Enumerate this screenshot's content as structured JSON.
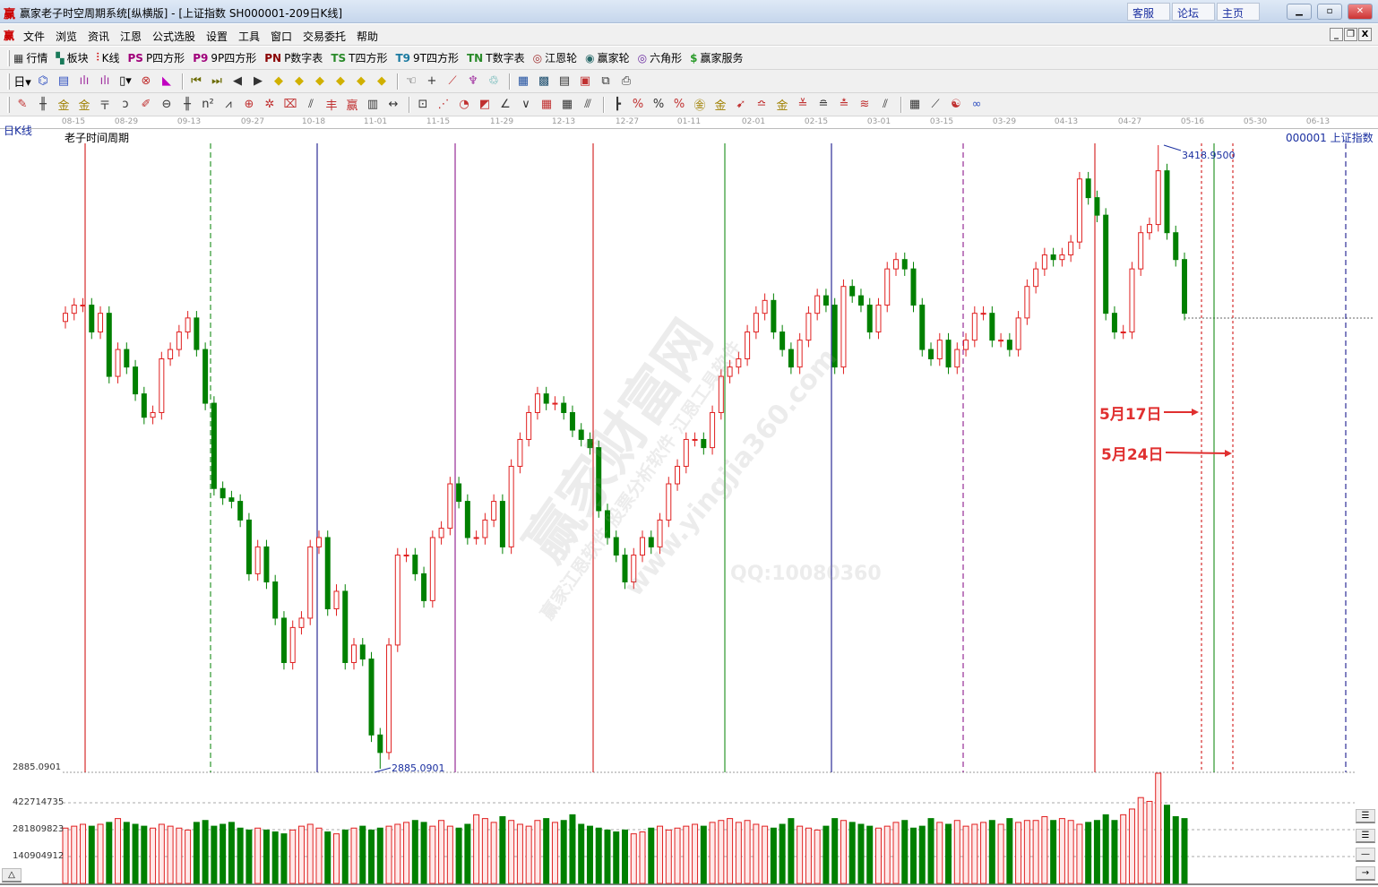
{
  "window": {
    "logo": "赢",
    "title": "赢家老子时空周期系统[纵横版] - [上证指数  SH000001-209日K线]",
    "links": [
      "客服",
      "论坛",
      "主页"
    ],
    "controls": {
      "minimize": "▁",
      "maximize": "▫",
      "close": "✕"
    }
  },
  "menu": {
    "logo": "赢",
    "items": [
      "文件",
      "浏览",
      "资讯",
      "江恩",
      "公式选股",
      "设置",
      "工具",
      "窗口",
      "交易委托",
      "帮助"
    ],
    "mdi": {
      "minimize": "_",
      "restore": "❐",
      "close": "X"
    }
  },
  "toolbar1": [
    {
      "name": "quotes-icon",
      "glyph": "▦",
      "color": "#333",
      "label": "行情"
    },
    {
      "name": "sector-icon",
      "glyph": "▚",
      "color": "#1a7a5a",
      "label": "板块"
    },
    {
      "name": "kline-icon",
      "glyph": "⫶",
      "color": "#c00",
      "label": "K线"
    },
    {
      "name": "ps-icon",
      "glyph": "PS",
      "color": "#a0007a",
      "label": "P四方形"
    },
    {
      "name": "p9-icon",
      "glyph": "P9",
      "color": "#a0007a",
      "label": "9P四方形"
    },
    {
      "name": "pn-icon",
      "glyph": "PN",
      "color": "#8a0000",
      "label": "P数字表"
    },
    {
      "name": "ts-icon",
      "glyph": "TS",
      "color": "#2a8a2a",
      "label": "T四方形"
    },
    {
      "name": "t9-icon",
      "glyph": "T9",
      "color": "#1a7aa0",
      "label": "9T四方形"
    },
    {
      "name": "tn-icon",
      "glyph": "TN",
      "color": "#2a8a2a",
      "label": "T数字表"
    },
    {
      "name": "gann-wheel-icon",
      "glyph": "◎",
      "color": "#a03030",
      "label": "江恩轮"
    },
    {
      "name": "yingjia-wheel-icon",
      "glyph": "◉",
      "color": "#2a6a6a",
      "label": "赢家轮"
    },
    {
      "name": "hexagon-icon",
      "glyph": "◎",
      "color": "#6a2aa0",
      "label": "六角形"
    },
    {
      "name": "dollar-icon",
      "glyph": "$",
      "color": "#2a9a2a",
      "label": "赢家服务"
    }
  ],
  "toolbar2": [
    {
      "name": "period-day-dropdown",
      "glyph": "日▾",
      "color": "#000"
    },
    {
      "name": "chart-icon",
      "glyph": "⌬",
      "color": "#3050c0"
    },
    {
      "name": "document-icon",
      "glyph": "▤",
      "color": "#3050c0"
    },
    {
      "name": "bars3-icon",
      "glyph": "ılı",
      "color": "#a030a0"
    },
    {
      "name": "bars9-icon",
      "glyph": "ılı",
      "color": "#a030a0"
    },
    {
      "name": "candle-dropdown",
      "glyph": "▯▾",
      "color": "#000"
    },
    {
      "name": "cycle-icon",
      "glyph": "⊗",
      "color": "#c03030"
    },
    {
      "name": "flag-icon",
      "glyph": "◣",
      "color": "#c000c0"
    },
    {
      "name": "sep",
      "glyph": "",
      "color": ""
    },
    {
      "name": "first-icon",
      "glyph": "⏮",
      "color": "#6a6a00"
    },
    {
      "name": "last-icon",
      "glyph": "⏭",
      "color": "#6a6a00"
    },
    {
      "name": "left-icon",
      "glyph": "◀",
      "color": "#333"
    },
    {
      "name": "right-icon",
      "glyph": "▶",
      "color": "#333"
    },
    {
      "name": "nav-left-icon",
      "glyph": "◆",
      "color": "#d0b000"
    },
    {
      "name": "nav-right-icon",
      "glyph": "◆",
      "color": "#d0b000"
    },
    {
      "name": "expand-icon",
      "glyph": "◆",
      "color": "#d0b000"
    },
    {
      "name": "shrink-icon",
      "glyph": "◆",
      "color": "#d0b000"
    },
    {
      "name": "zoom-in-icon",
      "glyph": "◆",
      "color": "#d0b000"
    },
    {
      "name": "zoom-out-icon",
      "glyph": "◆",
      "color": "#d0b000"
    },
    {
      "name": "sep",
      "glyph": "",
      "color": ""
    },
    {
      "name": "hand-icon",
      "glyph": "☜",
      "color": "#333"
    },
    {
      "name": "crosshair-icon",
      "glyph": "+",
      "color": "#333"
    },
    {
      "name": "line-icon",
      "glyph": "⟋",
      "color": "#c03030"
    },
    {
      "name": "tool-icon",
      "glyph": "♆",
      "color": "#a030a0"
    },
    {
      "name": "recycle-icon",
      "glyph": "♲",
      "color": "#2a9a9a"
    },
    {
      "name": "sep",
      "glyph": "",
      "color": ""
    },
    {
      "name": "calendar-icon",
      "glyph": "▦",
      "color": "#2050a0"
    },
    {
      "name": "calculator-icon",
      "glyph": "▩",
      "color": "#205070"
    },
    {
      "name": "notes-icon",
      "glyph": "▤",
      "color": "#333"
    },
    {
      "name": "save-icon",
      "glyph": "▣",
      "color": "#c03030"
    },
    {
      "name": "network-icon",
      "glyph": "⧉",
      "color": "#333"
    },
    {
      "name": "print-icon",
      "glyph": "⎙",
      "color": "#333"
    }
  ],
  "toolbar3": [
    {
      "name": "pen-icon",
      "glyph": "✎",
      "color": "#c03030"
    },
    {
      "name": "parallel-icon",
      "glyph": "╫",
      "color": "#333"
    },
    {
      "name": "gold-icon",
      "glyph": "金",
      "color": "#a08000"
    },
    {
      "name": "gold2-icon",
      "glyph": "金",
      "color": "#a08000"
    },
    {
      "name": "fan-icon",
      "glyph": "〒",
      "color": "#333"
    },
    {
      "name": "spiral-icon",
      "glyph": "ↄ",
      "color": "#333"
    },
    {
      "name": "brush-icon",
      "glyph": "✐",
      "color": "#c03030"
    },
    {
      "name": "circle-icon",
      "glyph": "⊖",
      "color": "#333"
    },
    {
      "name": "grid-icon",
      "glyph": "╫",
      "color": "#333"
    },
    {
      "name": "n2-icon",
      "glyph": "n²",
      "color": "#333"
    },
    {
      "name": "angle-icon",
      "glyph": "⩘",
      "color": "#333"
    },
    {
      "name": "target-icon",
      "glyph": "⊕",
      "color": "#c03030"
    },
    {
      "name": "star-icon",
      "glyph": "✲",
      "color": "#c03030"
    },
    {
      "name": "box-icon",
      "glyph": "⌧",
      "color": "#c03030"
    },
    {
      "name": "lines-icon",
      "glyph": "⫽",
      "color": "#333"
    },
    {
      "name": "period-icon",
      "glyph": "丰",
      "color": "#c03030"
    },
    {
      "name": "yingjia-icon",
      "glyph": "赢",
      "color": "#c03030"
    },
    {
      "name": "table-icon",
      "glyph": "▥",
      "color": "#333"
    },
    {
      "name": "measure-icon",
      "glyph": "↔",
      "color": "#333"
    },
    {
      "name": "sep",
      "glyph": "",
      "color": ""
    },
    {
      "name": "frame-icon",
      "glyph": "⊡",
      "color": "#333"
    },
    {
      "name": "rays-icon",
      "glyph": "⋰",
      "color": "#c03030"
    },
    {
      "name": "arc-icon",
      "glyph": "◔",
      "color": "#c03030"
    },
    {
      "name": "fan2-icon",
      "glyph": "◩",
      "color": "#c03030"
    },
    {
      "name": "angle2-icon",
      "glyph": "∠",
      "color": "#333"
    },
    {
      "name": "wave-icon",
      "glyph": "∨",
      "color": "#333"
    },
    {
      "name": "grid2-icon",
      "glyph": "▦",
      "color": "#c03030"
    },
    {
      "name": "grid3-icon",
      "glyph": "▦",
      "color": "#333"
    },
    {
      "name": "slashes-icon",
      "glyph": "⫻",
      "color": "#333"
    },
    {
      "name": "sep",
      "glyph": "",
      "color": ""
    },
    {
      "name": "ruler-icon",
      "glyph": "┣",
      "color": "#333"
    },
    {
      "name": "percent-slash-icon",
      "glyph": "%",
      "color": "#c03030"
    },
    {
      "name": "percent-icon",
      "glyph": "%",
      "color": "#333"
    },
    {
      "name": "percent-lines-icon",
      "glyph": "%",
      "color": "#c03030"
    },
    {
      "name": "gold-circle-icon",
      "glyph": "㊎",
      "color": "#a08000"
    },
    {
      "name": "gold-lines-icon",
      "glyph": "金",
      "color": "#a08000"
    },
    {
      "name": "arrow-tool-icon",
      "glyph": "➹",
      "color": "#c03030"
    },
    {
      "name": "level-icon",
      "glyph": "≏",
      "color": "#c03030"
    },
    {
      "name": "gold-level-icon",
      "glyph": "金",
      "color": "#a08000"
    },
    {
      "name": "angle-lines-icon",
      "glyph": "≚",
      "color": "#c03030"
    },
    {
      "name": "fan-lines-icon",
      "glyph": "≘",
      "color": "#333"
    },
    {
      "name": "fan-lines2-icon",
      "glyph": "≛",
      "color": "#c03030"
    },
    {
      "name": "zigzag-icon",
      "glyph": "≋",
      "color": "#c03030"
    },
    {
      "name": "slope-icon",
      "glyph": "⫽",
      "color": "#333"
    },
    {
      "name": "sep",
      "glyph": "",
      "color": ""
    },
    {
      "name": "table2-icon",
      "glyph": "▦",
      "color": "#333"
    },
    {
      "name": "chart-line-icon",
      "glyph": "⟋",
      "color": "#333"
    },
    {
      "name": "yinyang-icon",
      "glyph": "☯",
      "color": "#c03030"
    },
    {
      "name": "infinity-icon",
      "glyph": "∞",
      "color": "#3050c0"
    }
  ],
  "chart": {
    "period_label": "日K线",
    "study_title": "老子时间周期",
    "symbol_label": "000001  上证指数",
    "low_axis_label": "2885.0901",
    "low_marker": "2885.0901",
    "high_marker": "3418.9500",
    "annotations": [
      "5月17日",
      "5月24日"
    ],
    "watermarks": [
      "赢家财富网",
      "赢家江恩软件 股票分析软件 江恩工具软件",
      "www.yingjia360.com",
      "QQ:10080360"
    ],
    "up_color": "#e02020",
    "down_color": "#008000",
    "volume_axis_labels": [
      "422714735",
      "281809823",
      "140904912"
    ],
    "side_buttons": [
      "☰",
      "☰",
      "—",
      "→"
    ],
    "collapse_button": "△"
  },
  "chart_data": {
    "type": "candlestick",
    "x_tick_labels": [
      "08-15",
      "08-29",
      "09-13",
      "09-27",
      "10-18",
      "11-01",
      "11-15",
      "11-29",
      "12-13",
      "12-27",
      "01-11",
      "02-01",
      "02-15",
      "03-01",
      "03-15",
      "03-29",
      "04-13",
      "04-27",
      "05-16",
      "05-30",
      "06-13"
    ],
    "ylim": [
      2885.0901,
      3418.95
    ],
    "close": [
      3275,
      3282,
      3282,
      3259,
      3275,
      3221,
      3244,
      3229,
      3206,
      3186,
      3190,
      3236,
      3244,
      3259,
      3271,
      3244,
      3198,
      3125,
      3117,
      3114,
      3098,
      3052,
      3075,
      3045,
      3014,
      2976,
      3006,
      3014,
      3075,
      3083,
      3022,
      3037,
      2976,
      2991,
      2979,
      2914,
      2899,
      2991,
      3068,
      3068,
      3052,
      3029,
      3083,
      3091,
      3129,
      3114,
      3083,
      3083,
      3098,
      3114,
      3075,
      3144,
      3167,
      3190,
      3206,
      3198,
      3198,
      3190,
      3175,
      3167,
      3160,
      3106,
      3083,
      3068,
      3045,
      3068,
      3083,
      3075,
      3098,
      3129,
      3144,
      3167,
      3167,
      3160,
      3190,
      3221,
      3229,
      3236,
      3259,
      3275,
      3286,
      3259,
      3244,
      3229,
      3252,
      3275,
      3290,
      3282,
      3229,
      3298,
      3290,
      3282,
      3259,
      3282,
      3313,
      3321,
      3313,
      3282,
      3244,
      3236,
      3252,
      3229,
      3244,
      3252,
      3275,
      3275,
      3252,
      3252,
      3244,
      3271,
      3298,
      3313,
      3325,
      3321,
      3325,
      3336,
      3390,
      3374,
      3359,
      3275,
      3259,
      3259,
      3313,
      3344,
      3351,
      3397,
      3344,
      3321,
      3275
    ],
    "volume": [
      290000000.0,
      300000000.0,
      310000000.0,
      300000000.0,
      310000000.0,
      320000000.0,
      340000000.0,
      320000000.0,
      310000000.0,
      300000000.0,
      290000000.0,
      310000000.0,
      300000000.0,
      290000000.0,
      280000000.0,
      320000000.0,
      330000000.0,
      300000000.0,
      310000000.0,
      320000000.0,
      290000000.0,
      280000000.0,
      290000000.0,
      280000000.0,
      270000000.0,
      260000000.0,
      280000000.0,
      300000000.0,
      310000000.0,
      290000000.0,
      270000000.0,
      260000000.0,
      280000000.0,
      290000000.0,
      300000000.0,
      280000000.0,
      290000000.0,
      300000000.0,
      310000000.0,
      320000000.0,
      330000000.0,
      320000000.0,
      300000000.0,
      330000000.0,
      300000000.0,
      290000000.0,
      310000000.0,
      360000000.0,
      340000000.0,
      320000000.0,
      350000000.0,
      330000000.0,
      310000000.0,
      300000000.0,
      330000000.0,
      340000000.0,
      320000000.0,
      330000000.0,
      360000000.0,
      310000000.0,
      300000000.0,
      290000000.0,
      280000000.0,
      270000000.0,
      280000000.0,
      260000000.0,
      270000000.0,
      290000000.0,
      300000000.0,
      280000000.0,
      290000000.0,
      300000000.0,
      310000000.0,
      300000000.0,
      320000000.0,
      330000000.0,
      340000000.0,
      320000000.0,
      330000000.0,
      310000000.0,
      300000000.0,
      290000000.0,
      310000000.0,
      340000000.0,
      300000000.0,
      290000000.0,
      280000000.0,
      300000000.0,
      340000000.0,
      330000000.0,
      320000000.0,
      310000000.0,
      300000000.0,
      290000000.0,
      300000000.0,
      320000000.0,
      330000000.0,
      290000000.0,
      300000000.0,
      340000000.0,
      320000000.0,
      310000000.0,
      330000000.0,
      300000000.0,
      310000000.0,
      320000000.0,
      330000000.0,
      310000000.0,
      340000000.0,
      320000000.0,
      330000000.0,
      330000000.0,
      350000000.0,
      330000000.0,
      340000000.0,
      330000000.0,
      310000000.0,
      320000000.0,
      330000000.0,
      360000000.0,
      330000000.0,
      360000000.0,
      390000000.0,
      450000000.0,
      430000000.0,
      580000000.0,
      410000000.0,
      350000000.0,
      340000000.0
    ],
    "cycle_line_colors": [
      "#cc0000",
      "#008000",
      "#000080",
      "#800080",
      "#cc0000",
      "#008000",
      "#000080",
      "#800080",
      "#cc0000",
      "#cc0000",
      "#008000",
      "#cc0000",
      "#000080"
    ]
  }
}
